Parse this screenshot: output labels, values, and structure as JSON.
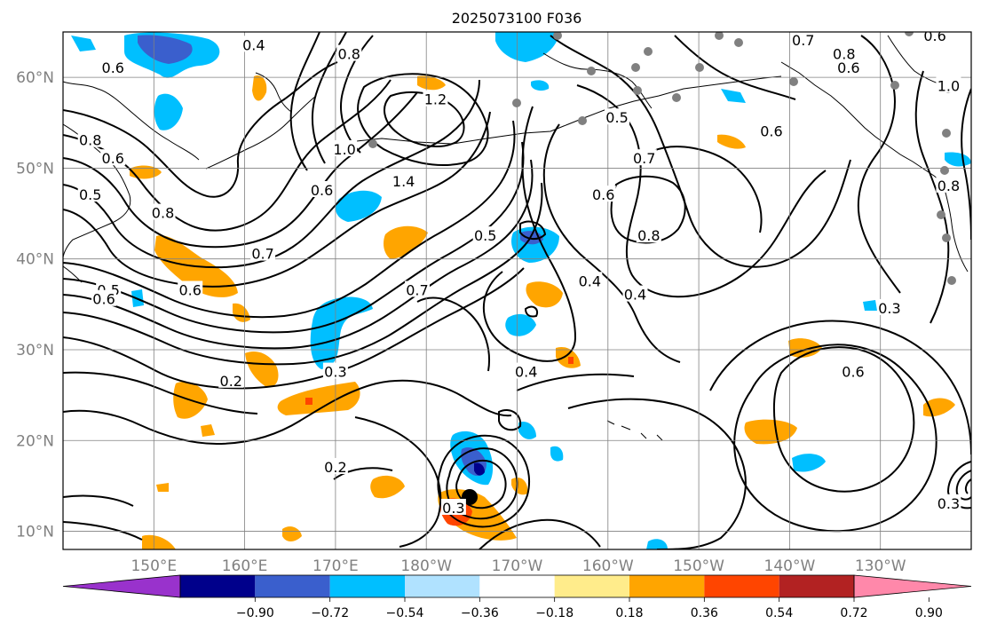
{
  "title": "2025073100 F036",
  "lon_ticks": [
    {
      "lon": 150,
      "label": "150°E"
    },
    {
      "lon": 160,
      "label": "160°E"
    },
    {
      "lon": 170,
      "label": "170°E"
    },
    {
      "lon": 180,
      "label": "180°W"
    },
    {
      "lon": 190,
      "label": "170°W"
    },
    {
      "lon": 200,
      "label": "160°W"
    },
    {
      "lon": 210,
      "label": "150°W"
    },
    {
      "lon": 220,
      "label": "140°W"
    },
    {
      "lon": 230,
      "label": "130°W"
    }
  ],
  "lat_ticks": [
    {
      "lat": 10,
      "label": "10°N"
    },
    {
      "lat": 20,
      "label": "20°N"
    },
    {
      "lat": 30,
      "label": "30°N"
    },
    {
      "lat": 40,
      "label": "40°N"
    },
    {
      "lat": 50,
      "label": "50°N"
    },
    {
      "lat": 60,
      "label": "60°N"
    }
  ],
  "extent": {
    "lon_min": 140,
    "lon_max": 240,
    "lat_min": 8,
    "lat_max": 65
  },
  "colorbar": {
    "colors": [
      "#9932CC",
      "#00008B",
      "#3A5FCD",
      "#00BFFF",
      "#B0E2FF",
      "#FFFFFF",
      "#FFEC8B",
      "#FFA500",
      "#FF4500",
      "#B22222",
      "#FF88AA"
    ],
    "tick_labels": [
      "−0.90",
      "−0.72",
      "−0.54",
      "−0.36",
      "−0.18",
      "0.18",
      "0.36",
      "0.54",
      "0.72",
      "0.90"
    ]
  },
  "contour_labels": [
    {
      "text": "0.4",
      "lon": 161,
      "lat": 63.5
    },
    {
      "text": "0.6",
      "lon": 145.5,
      "lat": 61
    },
    {
      "text": "0.8",
      "lon": 143,
      "lat": 53
    },
    {
      "text": "0.6",
      "lon": 145.5,
      "lat": 51
    },
    {
      "text": "0.5",
      "lon": 143,
      "lat": 47
    },
    {
      "text": "0.8",
      "lon": 151,
      "lat": 45
    },
    {
      "text": "0.7",
      "lon": 162,
      "lat": 40.5
    },
    {
      "text": "0.6",
      "lon": 154,
      "lat": 36.5
    },
    {
      "text": "0.5",
      "lon": 145,
      "lat": 36.5
    },
    {
      "text": "0.6",
      "lon": 144.5,
      "lat": 35.5
    },
    {
      "text": "0.6",
      "lon": 168.5,
      "lat": 47.5
    },
    {
      "text": "0.8",
      "lon": 171.5,
      "lat": 62.5
    },
    {
      "text": "1.0",
      "lon": 171,
      "lat": 52
    },
    {
      "text": "1.2",
      "lon": 181,
      "lat": 57.5
    },
    {
      "text": "1.4",
      "lon": 177.5,
      "lat": 48.5
    },
    {
      "text": "0.7",
      "lon": 179,
      "lat": 36.5
    },
    {
      "text": "0.5",
      "lon": 186.5,
      "lat": 42.5
    },
    {
      "text": "0.3",
      "lon": 170,
      "lat": 27.5
    },
    {
      "text": "0.2",
      "lon": 158.5,
      "lat": 26.5
    },
    {
      "text": "0.2",
      "lon": 170,
      "lat": 17
    },
    {
      "text": "0.3",
      "lon": 183,
      "lat": 12.5
    },
    {
      "text": "0.4",
      "lon": 191,
      "lat": 27.5
    },
    {
      "text": "0.4",
      "lon": 198,
      "lat": 37.5
    },
    {
      "text": "0.4",
      "lon": 203,
      "lat": 36
    },
    {
      "text": "0.6",
      "lon": 199.5,
      "lat": 47
    },
    {
      "text": "0.7",
      "lon": 204,
      "lat": 51
    },
    {
      "text": "0.5",
      "lon": 201,
      "lat": 55.5
    },
    {
      "text": "0.6",
      "lon": 218,
      "lat": 54
    },
    {
      "text": "0.8",
      "lon": 204.5,
      "lat": 42.5
    },
    {
      "text": "0.7",
      "lon": 221.5,
      "lat": 64
    },
    {
      "text": "0.6",
      "lon": 226.5,
      "lat": 61
    },
    {
      "text": "0.8",
      "lon": 226,
      "lat": 62.5
    },
    {
      "text": "0.6",
      "lon": 236,
      "lat": 64.5
    },
    {
      "text": "1.0",
      "lon": 237.5,
      "lat": 59
    },
    {
      "text": "0.8",
      "lon": 237.5,
      "lat": 48
    },
    {
      "text": "0.6",
      "lon": 227,
      "lat": 27.5
    },
    {
      "text": "0.3",
      "lon": 231,
      "lat": 34.5
    },
    {
      "text": "0.3",
      "lon": 237.5,
      "lat": 13
    }
  ]
}
